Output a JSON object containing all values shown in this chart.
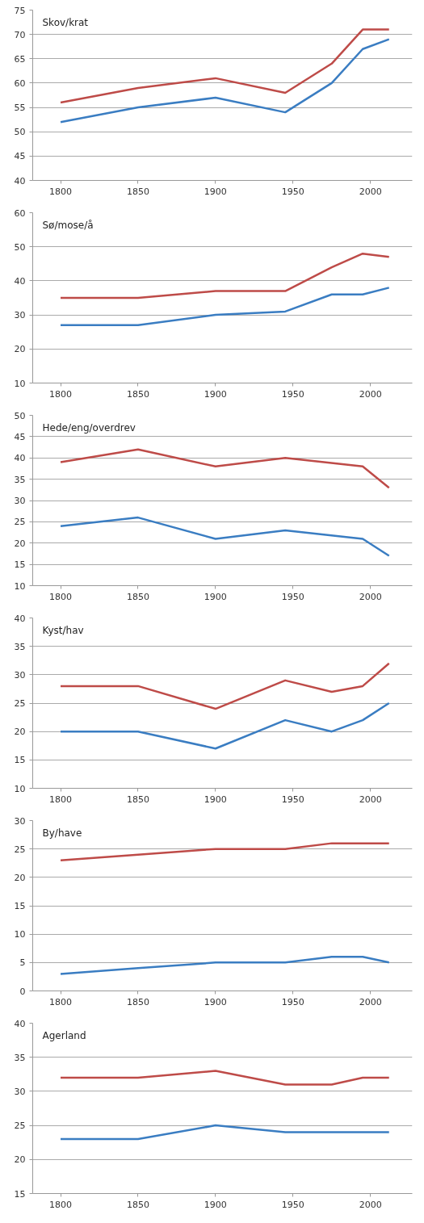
{
  "chart_data": [
    {
      "type": "line",
      "title": "Skov/krat",
      "x": [
        1800,
        1850,
        1900,
        1945,
        1975,
        1995,
        2012
      ],
      "xlim": [
        1782,
        2027
      ],
      "xticks": [
        1800,
        1850,
        1900,
        1950,
        2000
      ],
      "ylim": [
        40,
        75
      ],
      "yticks": [
        40,
        45,
        50,
        55,
        60,
        65,
        70,
        75
      ],
      "grid": "y",
      "series": [
        {
          "color": "#be4b48",
          "values": [
            56,
            59,
            61,
            58,
            64,
            71,
            71
          ]
        },
        {
          "color": "#3a7dc2",
          "values": [
            52,
            55,
            57,
            54,
            60,
            67,
            69
          ]
        }
      ]
    },
    {
      "type": "line",
      "title": "Sø/mose/å",
      "x": [
        1800,
        1850,
        1900,
        1945,
        1975,
        1995,
        2012
      ],
      "xlim": [
        1782,
        2027
      ],
      "xticks": [
        1800,
        1850,
        1900,
        1950,
        2000
      ],
      "ylim": [
        10,
        60
      ],
      "yticks": [
        10,
        20,
        30,
        40,
        50,
        60
      ],
      "grid": "y",
      "series": [
        {
          "color": "#be4b48",
          "values": [
            35,
            35,
            37,
            37,
            44,
            48,
            47
          ]
        },
        {
          "color": "#3a7dc2",
          "values": [
            27,
            27,
            30,
            31,
            36,
            36,
            38
          ]
        }
      ]
    },
    {
      "type": "line",
      "title": "Hede/eng/overdrev",
      "x": [
        1800,
        1850,
        1900,
        1945,
        1995,
        2012
      ],
      "xlim": [
        1782,
        2027
      ],
      "xticks": [
        1800,
        1850,
        1900,
        1950,
        2000
      ],
      "ylim": [
        10,
        50
      ],
      "yticks": [
        10,
        15,
        20,
        25,
        30,
        35,
        40,
        45,
        50
      ],
      "grid": "y",
      "series": [
        {
          "color": "#be4b48",
          "values": [
            39,
            42,
            38,
            40,
            38,
            33
          ]
        },
        {
          "color": "#3a7dc2",
          "values": [
            24,
            26,
            21,
            23,
            21,
            17
          ]
        }
      ]
    },
    {
      "type": "line",
      "title": "Kyst/hav",
      "x": [
        1800,
        1850,
        1900,
        1945,
        1975,
        1995,
        2012
      ],
      "xlim": [
        1782,
        2027
      ],
      "xticks": [
        1800,
        1850,
        1900,
        1950,
        2000
      ],
      "ylim": [
        10,
        40
      ],
      "yticks": [
        10,
        15,
        20,
        25,
        30,
        35,
        40
      ],
      "grid": "y",
      "series": [
        {
          "color": "#be4b48",
          "values": [
            28,
            28,
            24,
            29,
            27,
            28,
            32
          ]
        },
        {
          "color": "#3a7dc2",
          "values": [
            20,
            20,
            17,
            22,
            20,
            22,
            25
          ]
        }
      ]
    },
    {
      "type": "line",
      "title": "By/have",
      "x": [
        1800,
        1850,
        1900,
        1945,
        1975,
        1995,
        2012
      ],
      "xlim": [
        1782,
        2027
      ],
      "xticks": [
        1800,
        1850,
        1900,
        1950,
        2000
      ],
      "ylim": [
        0,
        30
      ],
      "yticks": [
        0,
        5,
        10,
        15,
        20,
        25,
        30
      ],
      "grid": "y",
      "series": [
        {
          "color": "#be4b48",
          "values": [
            23,
            24,
            25,
            25,
            26,
            26,
            26
          ]
        },
        {
          "color": "#3a7dc2",
          "values": [
            3,
            4,
            5,
            5,
            6,
            6,
            5
          ]
        }
      ]
    },
    {
      "type": "line",
      "title": "Agerland",
      "x": [
        1800,
        1850,
        1900,
        1945,
        1975,
        1995,
        2012
      ],
      "xlim": [
        1782,
        2027
      ],
      "xticks": [
        1800,
        1850,
        1900,
        1950,
        2000
      ],
      "ylim": [
        15,
        40
      ],
      "yticks": [
        15,
        20,
        25,
        30,
        35,
        40
      ],
      "grid": "y",
      "series": [
        {
          "color": "#be4b48",
          "values": [
            32,
            32,
            33,
            31,
            31,
            32,
            32
          ]
        },
        {
          "color": "#3a7dc2",
          "values": [
            23,
            23,
            25,
            24,
            24,
            24,
            24
          ]
        }
      ]
    }
  ]
}
